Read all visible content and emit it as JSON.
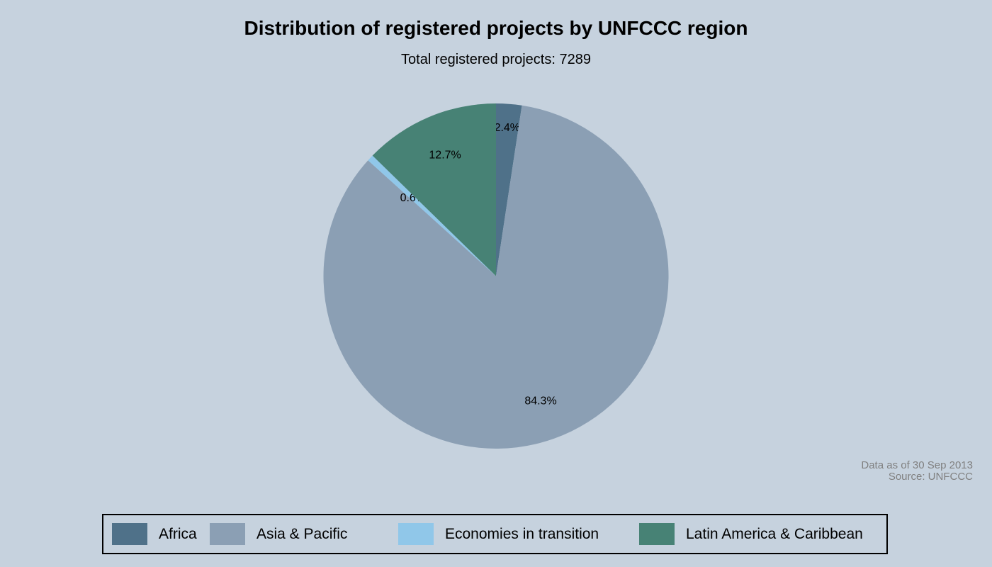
{
  "header": {
    "title": "Distribution of registered projects by UNFCCC region",
    "subtitle": "Total registered projects: 7289"
  },
  "note": {
    "line1": "Data as of 30 Sep 2013",
    "line2": "Source: UNFCCC"
  },
  "colors": {
    "background": "#c6d2de",
    "africa": "#4f7189",
    "asia_pacific": "#8b9fb4",
    "economies_in_transition": "#90c7e9",
    "latin_america_caribbean": "#478275",
    "note_text": "#808080",
    "legend_border": "#000000",
    "label_text": "#000000"
  },
  "chart_data": {
    "type": "pie",
    "title": "Distribution of registered projects by UNFCCC region",
    "subtitle": "Total registered projects: 7289",
    "total_registered_projects": 7289,
    "slices": [
      {
        "label": "Africa",
        "percent": 2.4,
        "display_label": "2.4%",
        "color": "#4f7189"
      },
      {
        "label": "Asia & Pacific",
        "percent": 84.3,
        "display_label": "84.3%",
        "color": "#8b9fb4"
      },
      {
        "label": "Economies in transition",
        "percent": 0.6,
        "display_label": "0.6%",
        "color": "#90c7e9"
      },
      {
        "label": "Latin America & Caribbean",
        "percent": 12.7,
        "display_label": "12.7%",
        "color": "#478275"
      }
    ],
    "start_angle_deg": 0,
    "direction": "clockwise",
    "slice_label_format": "percent",
    "legend_position": "bottom",
    "label_radius_fractions": [
      0.86,
      0.77,
      0.66,
      0.76
    ]
  },
  "legend": {
    "items": [
      {
        "label": "Africa",
        "color": "#4f7189"
      },
      {
        "label": "Asia & Pacific",
        "color": "#8b9fb4"
      },
      {
        "label": "Economies in transition",
        "color": "#90c7e9"
      },
      {
        "label": "Latin America & Caribbean",
        "color": "#478275"
      }
    ]
  }
}
